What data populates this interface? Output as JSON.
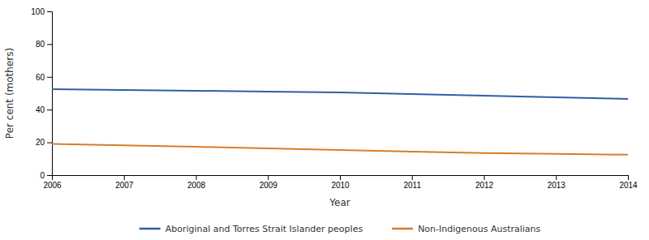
{
  "chart_data": {
    "type": "line",
    "xlabel": "Year",
    "ylabel": "Per cent (mothers)",
    "x": [
      2006,
      2007,
      2008,
      2009,
      2010,
      2011,
      2012,
      2013,
      2014
    ],
    "series": [
      {
        "name": "Aboriginal and Torres Strait Islander peoples",
        "color": "#2E5FA3",
        "values": [
          52.5,
          52,
          51.5,
          51,
          50.5,
          49.5,
          48.5,
          47.5,
          46.5
        ]
      },
      {
        "name": "Non-Indigenous Australians",
        "color": "#D97B29",
        "values": [
          19,
          18.2,
          17.3,
          16.3,
          15.3,
          14.3,
          13.5,
          13.0,
          12.5
        ]
      }
    ],
    "xlim": [
      2006,
      2014
    ],
    "xticks": [
      2006,
      2007,
      2008,
      2009,
      2010,
      2011,
      2012,
      2013,
      2014
    ],
    "ylim": [
      0,
      100
    ],
    "yticks": [
      0,
      20,
      40,
      60,
      80,
      100
    ],
    "grid": false,
    "legend": "bottom"
  }
}
